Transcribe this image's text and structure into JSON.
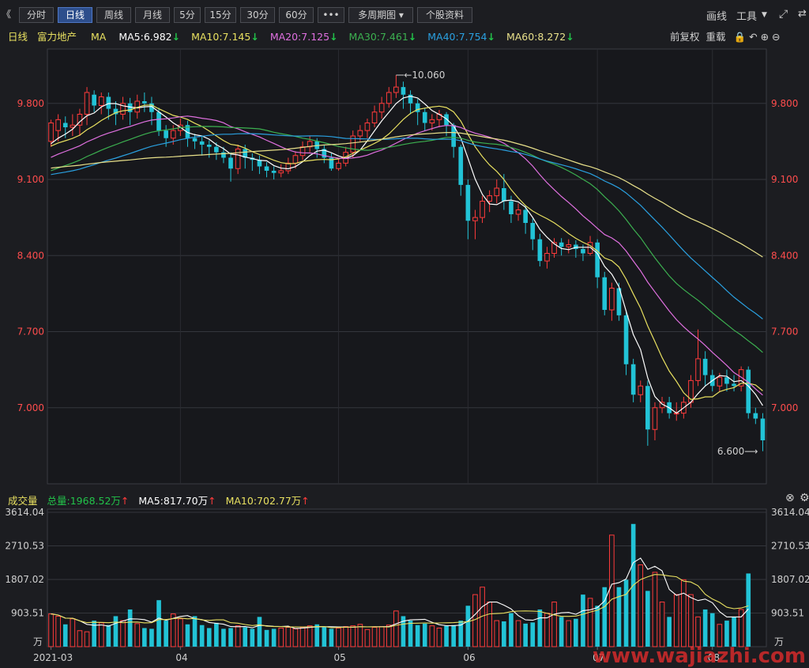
{
  "toolbar": {
    "back": "《",
    "tabs": [
      "分时",
      "日线",
      "周线",
      "月线",
      "5分",
      "15分",
      "30分",
      "60分",
      "•••",
      "多周期图",
      "个股资料"
    ],
    "active_tab": "日线",
    "right": [
      "画线",
      "工具"
    ]
  },
  "main_legend": {
    "period": "日线",
    "stock": "富力地产",
    "ma": "MA",
    "ma5": "MA5:6.982",
    "ma10": "MA10:7.145",
    "ma20": "MA20:7.125",
    "ma30": "MA30:7.461",
    "ma40": "MA40:7.754",
    "ma60": "MA60:8.272",
    "fq": "前复权",
    "reset": "重载"
  },
  "vol_legend": {
    "title": "成交量",
    "total": "总量:1968.52万",
    "ma5": "MA5:817.70万",
    "ma10": "MA10:702.77万"
  },
  "colors": {
    "up": "#ff3b3b",
    "down": "#22c3d6",
    "ma5": "#ffffff",
    "ma10": "#e8e060",
    "ma20": "#e070e0",
    "ma30": "#3cb050",
    "ma40": "#2aa0e0",
    "ma60": "#e8e08a"
  },
  "annotations": {
    "high": "10.060",
    "low": "6.600"
  },
  "watermark": "www.wajiazhi.com",
  "chart_data": [
    {
      "type": "candlestick",
      "title": "日线",
      "price_ticks": [
        "9.800",
        "9.100",
        "8.400",
        "7.700",
        "7.000"
      ],
      "x_ticks": [
        "2021-03",
        "04",
        "05",
        "06",
        "07",
        "08"
      ],
      "high": 10.06,
      "low": 6.6,
      "ylim": [
        6.3,
        10.3
      ],
      "ohlc": [
        [
          9.45,
          9.62,
          9.4,
          9.65
        ],
        [
          9.55,
          9.65,
          9.45,
          9.7
        ],
        [
          9.62,
          9.58,
          9.48,
          9.68
        ],
        [
          9.58,
          9.6,
          9.5,
          9.7
        ],
        [
          9.6,
          9.7,
          9.5,
          9.75
        ],
        [
          9.7,
          9.9,
          9.6,
          9.95
        ],
        [
          9.88,
          9.78,
          9.72,
          9.92
        ],
        [
          9.78,
          9.86,
          9.7,
          9.9
        ],
        [
          9.86,
          9.75,
          9.65,
          9.9
        ],
        [
          9.75,
          9.7,
          9.6,
          9.82
        ],
        [
          9.7,
          9.8,
          9.65,
          9.86
        ],
        [
          9.8,
          9.72,
          9.6,
          9.85
        ],
        [
          9.72,
          9.82,
          9.66,
          9.88
        ],
        [
          9.82,
          9.8,
          9.72,
          9.9
        ],
        [
          9.8,
          9.72,
          9.6,
          9.86
        ],
        [
          9.72,
          9.55,
          9.5,
          9.76
        ],
        [
          9.55,
          9.48,
          9.4,
          9.6
        ],
        [
          9.48,
          9.55,
          9.42,
          9.6
        ],
        [
          9.55,
          9.6,
          9.5,
          9.66
        ],
        [
          9.6,
          9.48,
          9.4,
          9.64
        ],
        [
          9.48,
          9.45,
          9.38,
          9.52
        ],
        [
          9.45,
          9.42,
          9.32,
          9.5
        ],
        [
          9.42,
          9.4,
          9.3,
          9.46
        ],
        [
          9.4,
          9.35,
          9.28,
          9.44
        ],
        [
          9.35,
          9.3,
          9.25,
          9.4
        ],
        [
          9.3,
          9.2,
          9.08,
          9.35
        ],
        [
          9.2,
          9.38,
          9.15,
          9.42
        ],
        [
          9.38,
          9.3,
          9.2,
          9.42
        ],
        [
          9.3,
          9.28,
          9.18,
          9.34
        ],
        [
          9.28,
          9.22,
          9.15,
          9.32
        ],
        [
          9.22,
          9.18,
          9.12,
          9.26
        ],
        [
          9.18,
          9.16,
          9.1,
          9.22
        ],
        [
          9.16,
          9.18,
          9.12,
          9.24
        ],
        [
          9.18,
          9.25,
          9.15,
          9.3
        ],
        [
          9.25,
          9.32,
          9.2,
          9.36
        ],
        [
          9.32,
          9.4,
          9.28,
          9.45
        ],
        [
          9.4,
          9.45,
          9.35,
          9.5
        ],
        [
          9.45,
          9.38,
          9.3,
          9.48
        ],
        [
          9.38,
          9.3,
          9.25,
          9.42
        ],
        [
          9.3,
          9.2,
          9.18,
          9.34
        ],
        [
          9.2,
          9.25,
          9.18,
          9.3
        ],
        [
          9.25,
          9.35,
          9.22,
          9.4
        ],
        [
          9.35,
          9.5,
          9.3,
          9.55
        ],
        [
          9.5,
          9.55,
          9.45,
          9.6
        ],
        [
          9.55,
          9.62,
          9.48,
          9.66
        ],
        [
          9.62,
          9.72,
          9.58,
          9.78
        ],
        [
          9.72,
          9.8,
          9.66,
          9.86
        ],
        [
          9.8,
          9.9,
          9.76,
          9.95
        ],
        [
          9.9,
          9.95,
          9.85,
          10.06
        ],
        [
          9.95,
          9.88,
          9.75,
          10.0
        ],
        [
          9.88,
          9.8,
          9.7,
          9.92
        ],
        [
          9.8,
          9.72,
          9.6,
          9.84
        ],
        [
          9.72,
          9.62,
          9.55,
          9.76
        ],
        [
          9.62,
          9.65,
          9.55,
          9.7
        ],
        [
          9.65,
          9.7,
          9.58,
          9.74
        ],
        [
          9.7,
          9.6,
          9.5,
          9.72
        ],
        [
          9.6,
          9.4,
          9.3,
          9.62
        ],
        [
          9.4,
          9.05,
          8.95,
          9.42
        ],
        [
          9.05,
          8.72,
          8.55,
          9.1
        ],
        [
          8.72,
          8.75,
          8.55,
          8.82
        ],
        [
          8.75,
          8.9,
          8.7,
          8.95
        ],
        [
          8.9,
          8.95,
          8.8,
          9.0
        ],
        [
          8.95,
          9.02,
          8.88,
          9.1
        ],
        [
          9.02,
          8.9,
          8.82,
          9.15
        ],
        [
          8.9,
          8.78,
          8.7,
          8.95
        ],
        [
          8.78,
          8.82,
          8.72,
          8.88
        ],
        [
          8.82,
          8.7,
          8.6,
          8.86
        ],
        [
          8.7,
          8.55,
          8.45,
          8.74
        ],
        [
          8.55,
          8.35,
          8.3,
          8.6
        ],
        [
          8.35,
          8.42,
          8.28,
          8.48
        ],
        [
          8.42,
          8.52,
          8.38,
          8.56
        ],
        [
          8.52,
          8.48,
          8.4,
          8.56
        ],
        [
          8.48,
          8.5,
          8.42,
          8.55
        ],
        [
          8.5,
          8.46,
          8.38,
          8.54
        ],
        [
          8.46,
          8.42,
          8.35,
          8.5
        ],
        [
          8.42,
          8.52,
          8.4,
          8.58
        ],
        [
          8.52,
          8.2,
          8.1,
          8.55
        ],
        [
          8.2,
          7.9,
          7.85,
          8.25
        ],
        [
          7.9,
          8.1,
          7.8,
          8.15
        ],
        [
          8.1,
          7.85,
          7.8,
          8.15
        ],
        [
          7.85,
          7.4,
          7.3,
          7.9
        ],
        [
          7.4,
          7.12,
          7.05,
          7.45
        ],
        [
          7.12,
          7.2,
          7.05,
          7.25
        ],
        [
          7.2,
          6.8,
          6.65,
          7.25
        ],
        [
          6.8,
          7.0,
          6.7,
          7.05
        ],
        [
          7.0,
          7.05,
          6.95,
          7.1
        ],
        [
          7.05,
          6.95,
          6.9,
          7.1
        ],
        [
          6.95,
          6.95,
          6.88,
          7.05
        ],
        [
          6.95,
          7.05,
          6.9,
          7.1
        ],
        [
          7.05,
          7.25,
          7.0,
          7.3
        ],
        [
          7.25,
          7.45,
          7.2,
          7.72
        ],
        [
          7.45,
          7.3,
          7.2,
          7.52
        ],
        [
          7.3,
          7.2,
          7.15,
          7.35
        ],
        [
          7.2,
          7.28,
          7.15,
          7.32
        ],
        [
          7.28,
          7.22,
          7.15,
          7.35
        ],
        [
          7.22,
          7.2,
          7.15,
          7.3
        ],
        [
          7.2,
          7.35,
          7.15,
          7.38
        ],
        [
          7.35,
          6.95,
          6.9,
          7.38
        ],
        [
          6.95,
          6.9,
          6.85,
          7.0
        ],
        [
          6.9,
          6.7,
          6.6,
          6.95
        ]
      ],
      "ma_series": {
        "MA5": 6.982,
        "MA10": 7.145,
        "MA20": 7.125,
        "MA30": 7.461,
        "MA40": 7.754,
        "MA60": 8.272
      }
    },
    {
      "type": "bar",
      "title": "成交量",
      "unit": "万",
      "y_ticks": [
        "3614.04",
        "2710.53",
        "1807.02",
        "903.51"
      ],
      "ylim": [
        0,
        3614.04
      ],
      "volumes": [
        880,
        820,
        600,
        750,
        430,
        400,
        700,
        640,
        580,
        820,
        700,
        1000,
        620,
        500,
        480,
        1250,
        700,
        880,
        750,
        600,
        820,
        580,
        500,
        640,
        480,
        500,
        560,
        520,
        480,
        800,
        450,
        480,
        500,
        520,
        480,
        520,
        560,
        600,
        520,
        480,
        500,
        540,
        560,
        600,
        460,
        520,
        540,
        580,
        960,
        820,
        700,
        580,
        620,
        560,
        500,
        560,
        580,
        700,
        1100,
        1400,
        1600,
        1200,
        700,
        680,
        900,
        700,
        620,
        650,
        1000,
        900,
        1200,
        800,
        700,
        750,
        1400,
        1300,
        1100,
        1600,
        3000,
        1600,
        1800,
        3300,
        2200,
        1500,
        2000,
        1200,
        800,
        1400,
        1800,
        1400,
        800,
        1000,
        900,
        600,
        700,
        800,
        1000,
        1968
      ]
    }
  ]
}
